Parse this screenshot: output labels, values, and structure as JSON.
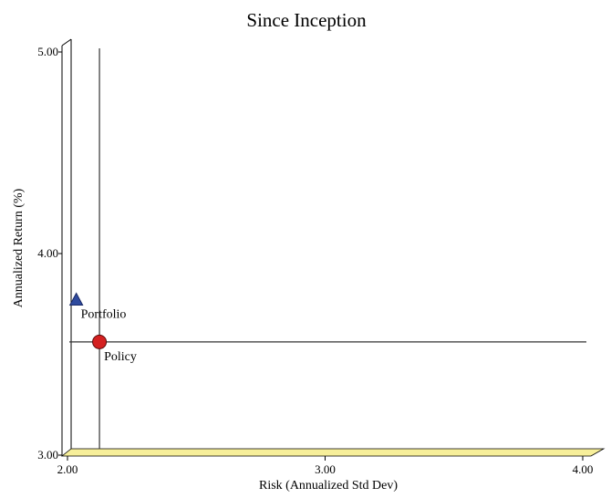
{
  "chart_data": {
    "type": "scatter",
    "title": "Since Inception",
    "xlabel": "Risk (Annualized Std Dev)",
    "ylabel": "Annualized Return (%)",
    "xlim": [
      2.0,
      4.0
    ],
    "ylim": [
      3.0,
      5.0
    ],
    "x_ticks": [
      "2.00",
      "3.00",
      "4.00"
    ],
    "y_ticks": [
      "3.00",
      "4.00",
      "5.00"
    ],
    "points": [
      {
        "name": "Portfolio",
        "x": 2.02,
        "y": 3.74,
        "marker": "triangle",
        "color": "#2e4a9e"
      },
      {
        "name": "Policy",
        "x": 2.11,
        "y": 3.53,
        "marker": "circle",
        "color": "#d42020"
      }
    ],
    "reference_lines": {
      "vertical_x": 2.11,
      "horizontal_y": 3.53
    },
    "colors": {
      "floor": "#f7ef9a",
      "axis": "#000000",
      "ref_line": "#333333"
    }
  }
}
